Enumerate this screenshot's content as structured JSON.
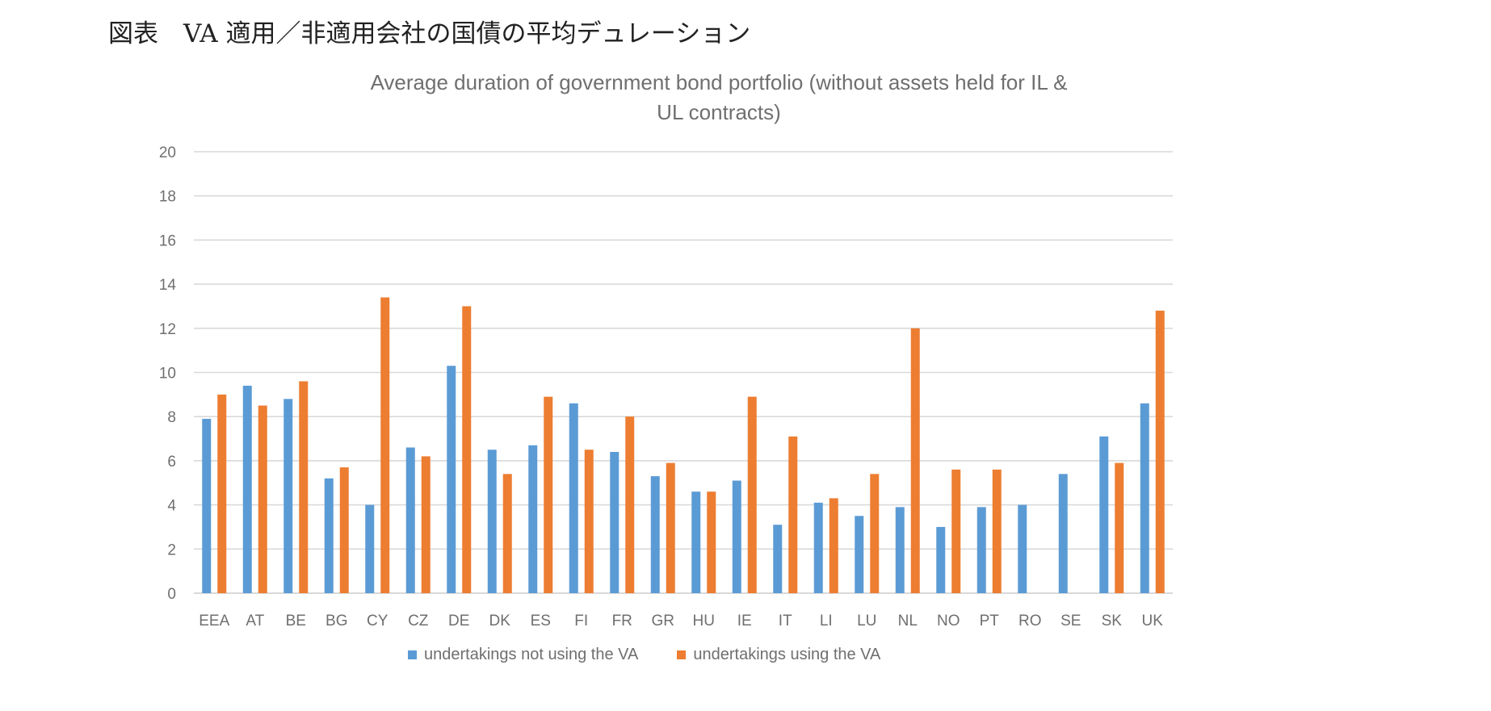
{
  "figure_heading": "図表　VA 適用／非適用会社の国債の平均デュレーション",
  "colors": {
    "series_not_va": "#5b9bd5",
    "series_va": "#ed7d31",
    "grid": "#d9d9d9",
    "axis_text": "#6f6f6f"
  },
  "chart_data": {
    "type": "bar",
    "title": "Average duration of government bond portfolio (without assets held for IL & UL contracts)",
    "title_lines": [
      "Average duration of government bond portfolio (without assets held for IL &",
      "UL contracts)"
    ],
    "xlabel": "",
    "ylabel": "",
    "ylim": [
      0,
      20
    ],
    "yticks": [
      0,
      2,
      4,
      6,
      8,
      10,
      12,
      14,
      16,
      18,
      20
    ],
    "grid": true,
    "legend_position": "bottom",
    "categories": [
      "EEA",
      "AT",
      "BE",
      "BG",
      "CY",
      "CZ",
      "DE",
      "DK",
      "ES",
      "FI",
      "FR",
      "GR",
      "HU",
      "IE",
      "IT",
      "LI",
      "LU",
      "NL",
      "NO",
      "PT",
      "RO",
      "SE",
      "SK",
      "UK"
    ],
    "series": [
      {
        "name": "undertakings not using the VA",
        "values": [
          7.9,
          9.4,
          8.8,
          5.2,
          4.0,
          6.6,
          10.3,
          6.5,
          6.7,
          8.6,
          6.4,
          5.3,
          4.6,
          5.1,
          3.1,
          4.1,
          3.5,
          3.9,
          3.0,
          3.9,
          4.0,
          5.4,
          7.1,
          8.6
        ]
      },
      {
        "name": "undertakings using the VA",
        "values": [
          9.0,
          8.5,
          9.6,
          5.7,
          13.4,
          6.2,
          13.0,
          5.4,
          8.9,
          6.5,
          8.0,
          5.9,
          4.6,
          8.9,
          7.1,
          4.3,
          5.4,
          12.0,
          5.6,
          5.6,
          null,
          null,
          5.9,
          12.8
        ]
      }
    ]
  }
}
